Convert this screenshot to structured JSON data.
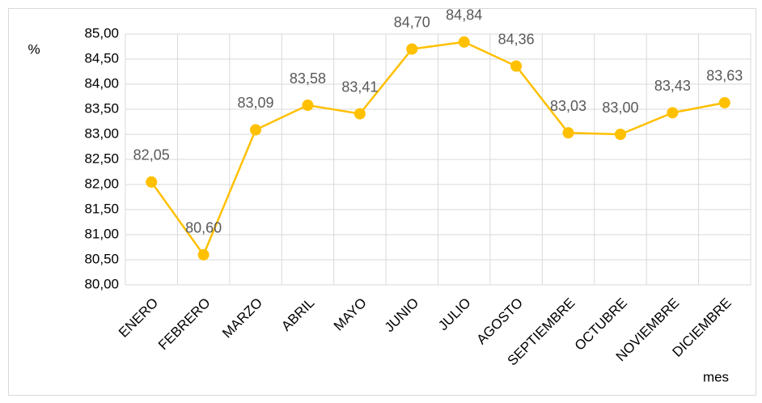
{
  "chart_data": {
    "type": "line",
    "y_label": "%",
    "x_label": "mes",
    "categories": [
      "ENERO",
      "FEBRERO",
      "MARZO",
      "ABRIL",
      "MAYO",
      "JUNIO",
      "JULIO",
      "AGOSTO",
      "SEPTIEMBRE",
      "OCTUBRE",
      "NOVIEMBRE",
      "DICIEMBRE"
    ],
    "values": [
      82.05,
      80.6,
      83.09,
      83.58,
      83.41,
      84.7,
      84.84,
      84.36,
      83.03,
      83.0,
      83.43,
      83.63
    ],
    "value_labels": [
      "82,05",
      "80,60",
      "83,09",
      "83,58",
      "83,41",
      "84,70",
      "84,84",
      "84,36",
      "83,03",
      "83,00",
      "83,43",
      "83,63"
    ],
    "color": "#ffc000",
    "ylim": [
      80,
      85
    ],
    "yticks": [
      {
        "value": 80,
        "label": "80,00"
      },
      {
        "value": 80.5,
        "label": "80,50"
      },
      {
        "value": 81,
        "label": "81,00"
      },
      {
        "value": 81.5,
        "label": "81,50"
      },
      {
        "value": 82,
        "label": "82,00"
      },
      {
        "value": 82.5,
        "label": "82,50"
      },
      {
        "value": 83,
        "label": "83,00"
      },
      {
        "value": 83.5,
        "label": "83,50"
      },
      {
        "value": 84,
        "label": "84,00"
      },
      {
        "value": 84.5,
        "label": "84,50"
      },
      {
        "value": 85,
        "label": "85,00"
      }
    ],
    "grid": true
  }
}
